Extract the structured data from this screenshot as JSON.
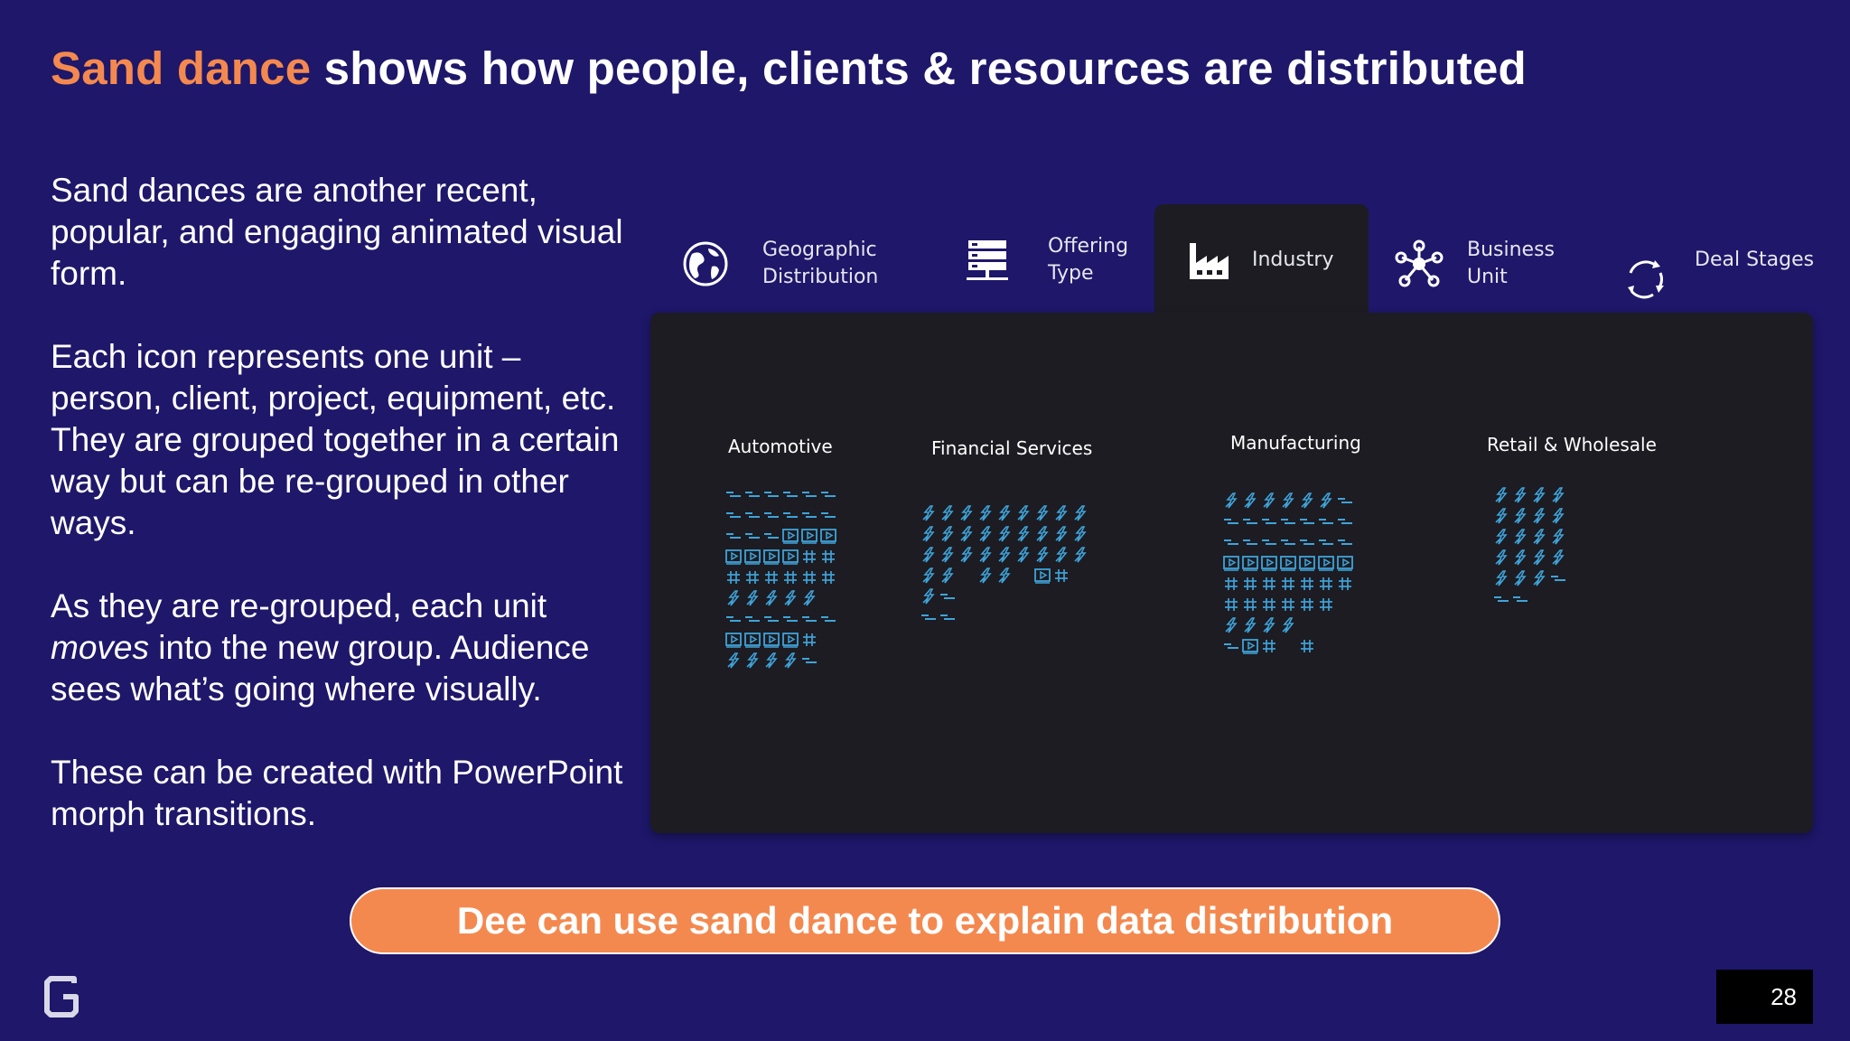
{
  "slide": {
    "title_accent": "Sand dance",
    "title_rest": " shows how people, clients & resources are distributed",
    "paragraph_1": "Sand dances are another recent, popular, and engaging animated visual form.",
    "paragraph_2": "Each icon represents one unit – person, client, project, equipment, etc. They are grouped together in a certain way but can be re-grouped in other ways.",
    "paragraph_3_em": "moves",
    "paragraph_3_pre": "As they are re-grouped, each unit ",
    "paragraph_3_post": " into the new group. Audience sees what’s going where visually.",
    "paragraph_4": "These can be created with PowerPoint morph transitions.",
    "cta_label": "Dee can use sand dance to explain data distribution",
    "page_number": "28"
  },
  "tabs": [
    {
      "label": "Geographic\nDistribution",
      "icon": "globe-icon",
      "active": false
    },
    {
      "label": "Offering\nType",
      "icon": "server-icon",
      "active": false
    },
    {
      "label": "Industry",
      "icon": "factory-icon",
      "active": true
    },
    {
      "label": "Business\nUnit",
      "icon": "network-icon",
      "active": false
    },
    {
      "label": "Deal Stages",
      "icon": "cycle-icon",
      "active": false
    }
  ],
  "groups": [
    {
      "label": "Automotive",
      "rows": [
        "ssssss",
        "ssssss",
        "sssppp",
        "pppprr",
        "rrrrrr",
        "lllll",
        "ssssss",
        "ppppr",
        "lllls"
      ]
    },
    {
      "label": "Financial Services",
      "rows": [
        "lllllllll",
        "lllllllll",
        "lllllllll",
        "ll_ll_pr",
        "ls",
        "ss"
      ]
    },
    {
      "label": "Manufacturing",
      "rows": [
        "lllllls",
        "sssssss",
        "sssssss",
        "ppppppp",
        "rrrrrrr",
        "rrrrrr",
        "llll",
        "spr r"
      ]
    },
    {
      "label": "Retail & Wholesale",
      "rows": [
        "llll",
        "llll",
        "llll",
        "llll",
        "llls",
        "ss"
      ]
    }
  ],
  "unit_legend": {
    "l": "lightning-icon",
    "s": "dash-icon",
    "p": "play-icon",
    "r": "grid-icon"
  },
  "colors": {
    "background": "#1e176a",
    "accent": "#f4894f",
    "panel": "#1c1c22",
    "unit": "#3fa3d9"
  }
}
